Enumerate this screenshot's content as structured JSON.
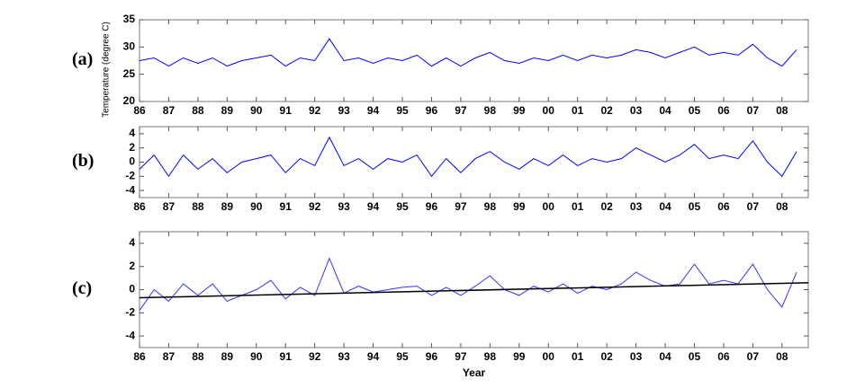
{
  "chart_data": [
    {
      "type": "line",
      "label": "(a)",
      "ylabel": "Temperature (degree C)",
      "x": [
        86,
        86.5,
        87,
        87.5,
        88,
        88.5,
        89,
        89.5,
        90,
        90.5,
        91,
        91.5,
        92,
        92.5,
        93,
        93.5,
        94,
        94.5,
        95,
        95.5,
        96,
        96.5,
        97,
        97.5,
        98,
        98.5,
        99,
        99.5,
        100,
        100.5,
        101,
        101.5,
        102,
        102.5,
        103,
        103.5,
        104,
        104.5,
        105,
        105.5,
        106,
        106.5,
        107,
        107.5,
        108,
        108.5
      ],
      "series": [
        {
          "color": "#0000ff",
          "values": [
            27.5,
            28,
            26.5,
            28,
            27,
            28,
            26.5,
            27.5,
            28,
            28.5,
            26.5,
            28,
            27.5,
            31.5,
            27.5,
            28,
            27,
            28,
            27.5,
            28.5,
            26.5,
            28,
            26.5,
            28,
            29,
            27.5,
            27,
            28,
            27.5,
            28.5,
            27.5,
            28.5,
            28,
            28.5,
            29.5,
            29,
            28,
            29,
            30,
            28.5,
            29,
            28.5,
            30.5,
            28,
            26.5,
            29.5
          ]
        }
      ],
      "xlim": [
        86,
        108.9
      ],
      "ylim": [
        20,
        35
      ],
      "yticks": [
        20,
        25,
        30,
        35
      ],
      "xticks": [
        86,
        87,
        88,
        89,
        90,
        91,
        92,
        93,
        94,
        95,
        96,
        97,
        98,
        99,
        {
          "value": 100,
          "label": "00"
        },
        {
          "value": 101,
          "label": "01"
        },
        {
          "value": 102,
          "label": "02"
        },
        {
          "value": 103,
          "label": "03"
        },
        {
          "value": 104,
          "label": "04"
        },
        {
          "value": 105,
          "label": "05"
        },
        {
          "value": 106,
          "label": "06"
        },
        {
          "value": 107,
          "label": "07"
        },
        {
          "value": 108,
          "label": "08"
        }
      ]
    },
    {
      "type": "line",
      "label": "(b)",
      "x": [
        86,
        86.5,
        87,
        87.5,
        88,
        88.5,
        89,
        89.5,
        90,
        90.5,
        91,
        91.5,
        92,
        92.5,
        93,
        93.5,
        94,
        94.5,
        95,
        95.5,
        96,
        96.5,
        97,
        97.5,
        98,
        98.5,
        99,
        99.5,
        100,
        100.5,
        101,
        101.5,
        102,
        102.5,
        103,
        103.5,
        104,
        104.5,
        105,
        105.5,
        106,
        106.5,
        107,
        107.5,
        108,
        108.5
      ],
      "series": [
        {
          "color": "#0000ff",
          "values": [
            -1,
            1,
            -2,
            1,
            -1,
            0.5,
            -1.5,
            0,
            0.5,
            1,
            -1.5,
            0.5,
            -0.5,
            3.5,
            -0.5,
            0.5,
            -1,
            0.5,
            0,
            1,
            -2,
            0.5,
            -1.5,
            0.5,
            1.5,
            0,
            -1,
            0.5,
            -0.5,
            1,
            -0.5,
            0.5,
            0,
            0.5,
            2,
            1,
            0,
            1,
            2.5,
            0.5,
            1,
            0.5,
            3,
            0,
            -2,
            1.5
          ]
        }
      ],
      "xlim": [
        86,
        108.9
      ],
      "ylim": [
        -5,
        5
      ],
      "yticks": [
        -4,
        -2,
        0,
        2,
        4
      ],
      "xticks": [
        86,
        87,
        88,
        89,
        90,
        91,
        92,
        93,
        94,
        95,
        96,
        97,
        98,
        99,
        {
          "value": 100,
          "label": "00"
        },
        {
          "value": 101,
          "label": "01"
        },
        {
          "value": 102,
          "label": "02"
        },
        {
          "value": 103,
          "label": "03"
        },
        {
          "value": 104,
          "label": "04"
        },
        {
          "value": 105,
          "label": "05"
        },
        {
          "value": 106,
          "label": "06"
        },
        {
          "value": 107,
          "label": "07"
        },
        {
          "value": 108,
          "label": "08"
        }
      ]
    },
    {
      "type": "line",
      "label": "(c)",
      "xlabel": "Year",
      "x": [
        86,
        86.5,
        87,
        87.5,
        88,
        88.5,
        89,
        89.5,
        90,
        90.5,
        91,
        91.5,
        92,
        92.5,
        93,
        93.5,
        94,
        94.5,
        95,
        95.5,
        96,
        96.5,
        97,
        97.5,
        98,
        98.5,
        99,
        99.5,
        100,
        100.5,
        101,
        101.5,
        102,
        102.5,
        103,
        103.5,
        104,
        104.5,
        105,
        105.5,
        106,
        106.5,
        107,
        107.5,
        108,
        108.5
      ],
      "series": [
        {
          "color": "#3333ff",
          "values": [
            -1.8,
            0,
            -1,
            0.5,
            -0.5,
            0.5,
            -1,
            -0.5,
            0,
            0.8,
            -0.8,
            0.2,
            -0.5,
            2.7,
            -0.3,
            0.3,
            -0.2,
            0,
            0.2,
            0.3,
            -0.5,
            0.2,
            -0.5,
            0.3,
            1.2,
            0,
            -0.5,
            0.3,
            -0.2,
            0.5,
            -0.3,
            0.3,
            0,
            0.5,
            1.5,
            0.8,
            0.3,
            0.5,
            2.2,
            0.5,
            0.8,
            0.5,
            2.2,
            0,
            -1.5,
            1.5
          ]
        }
      ],
      "trend": {
        "color": "#000000",
        "x": [
          86,
          108.9
        ],
        "values": [
          -0.7,
          0.6
        ]
      },
      "xlim": [
        86,
        108.9
      ],
      "ylim": [
        -5,
        5
      ],
      "yticks": [
        -4,
        -2,
        0,
        2,
        4
      ],
      "xticks": [
        86,
        87,
        88,
        89,
        90,
        91,
        92,
        93,
        94,
        95,
        96,
        97,
        98,
        99,
        {
          "value": 100,
          "label": "00"
        },
        {
          "value": 101,
          "label": "01"
        },
        {
          "value": 102,
          "label": "02"
        },
        {
          "value": 103,
          "label": "03"
        },
        {
          "value": 104,
          "label": "04"
        },
        {
          "value": 105,
          "label": "05"
        },
        {
          "value": 106,
          "label": "06"
        },
        {
          "value": 107,
          "label": "07"
        },
        {
          "value": 108,
          "label": "08"
        }
      ]
    }
  ]
}
